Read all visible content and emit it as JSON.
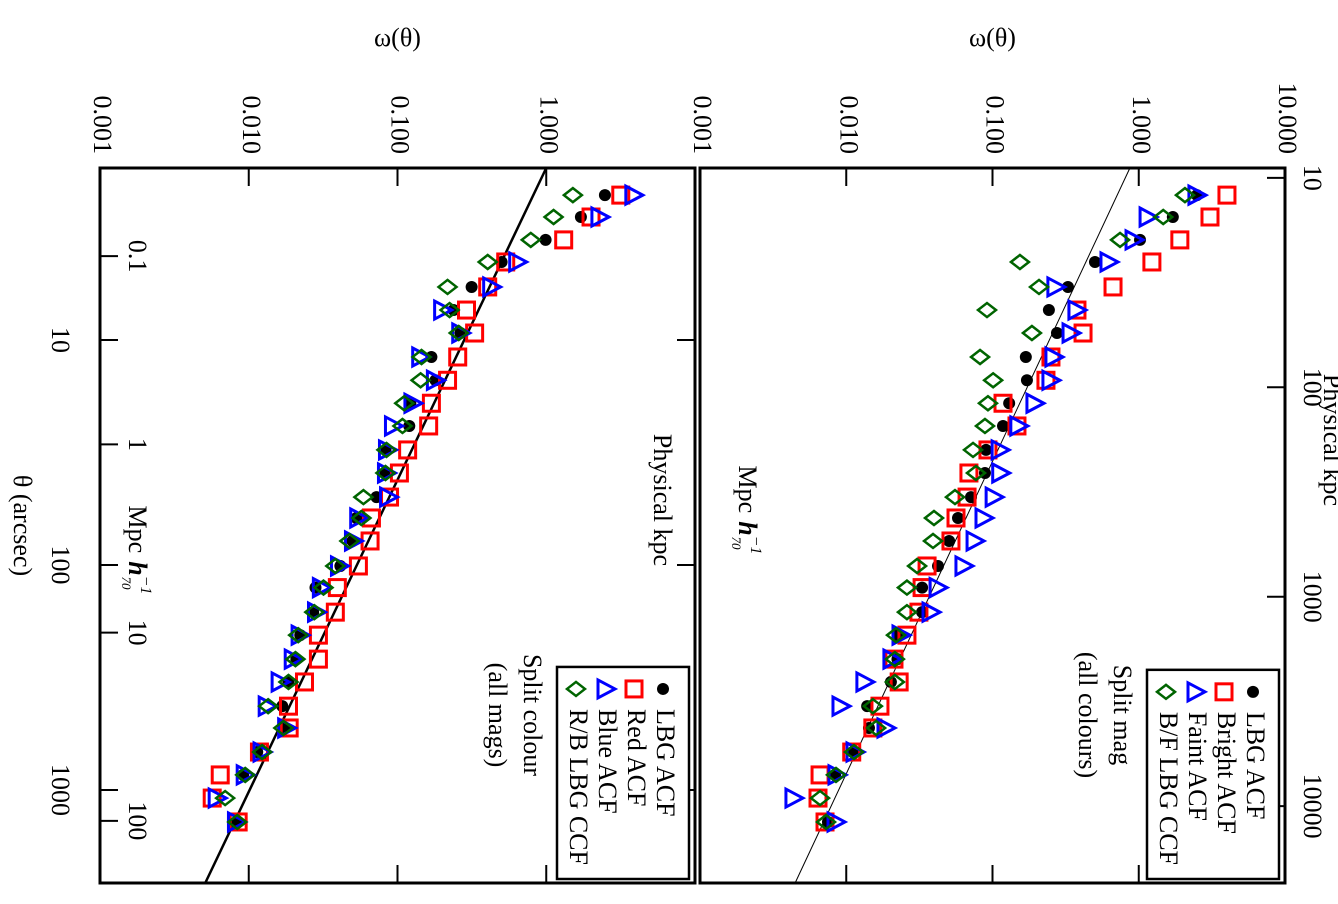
{
  "chart_data": [
    {
      "type": "scatter",
      "log_x": true,
      "log_y": true,
      "y_label": "ω(θ)",
      "xlim": [
        1.72,
        2590
      ],
      "ylim": [
        0.001,
        10
      ],
      "yticks": [
        0.001,
        {
          "value": 0.01,
          "label": "0.010"
        },
        {
          "value": 0.1,
          "label": "0.100"
        },
        {
          "value": 1,
          "label": "1.000"
        },
        {
          "value": 10,
          "label": "10.000"
        }
      ],
      "kpc_axis": {
        "label": "Physical kpc",
        "lim": [
          8.97,
          23280
        ],
        "ticks": [
          10,
          100,
          1000,
          10000
        ]
      },
      "mpc_axis": {
        "label": {
          "text": "Mpc",
          "h": "h",
          "sup": "−1",
          "sub": "70"
        }
      },
      "annotation": [
        "Split mag",
        "(all colours)"
      ],
      "x": [
        2.27,
        2.84,
        3.59,
        4.5,
        5.81,
        7.36,
        9.31,
        11.9,
        15.1,
        19.1,
        24.1,
        30.8,
        39.0,
        49.9,
        61.8,
        78.2,
        101,
        126,
        162,
        205,
        262,
        331,
        424,
        530,
        678,
        857,
        1086,
        1387
      ],
      "series": [
        {
          "name": "LBG ACF",
          "color": "#000000",
          "marker": "dot",
          "values": [
            2.5,
            1.71,
            1.02,
            0.502,
            0.328,
            0.243,
            0.276,
            0.169,
            0.172,
            0.13,
            0.118,
            0.0903,
            0.0888,
            0.0713,
            0.0581,
            0.0505,
            0.0424,
            0.033,
            0.033,
            0.0224,
            0.0224,
            0.0202,
            0.0139,
            0.0143,
            0.0111,
            0.00838,
            null,
            0.0075
          ]
        },
        {
          "name": "Bright ACF",
          "color": "#ff0000",
          "marker": "square",
          "values": [
            4.01,
            3.07,
            1.91,
            1.23,
            0.667,
            0.378,
            0.416,
            0.251,
            0.232,
            0.118,
            0.147,
            0.0931,
            0.069,
            0.067,
            0.0563,
            0.052,
            0.0357,
            0.033,
            0.0314,
            0.026,
            0.0212,
            0.023,
            0.017,
            0.0152,
            0.0109,
            0.00662,
            0.00641,
            0.00716
          ]
        },
        {
          "name": "Faint ACF",
          "color": "#0000ff",
          "marker": "triangle",
          "values": [
            2.46,
            1.14,
            0.914,
            0.616,
            0.267,
            0.372,
            0.339,
            0.259,
            0.247,
            0.192,
            0.149,
            0.111,
            0.112,
            0.101,
            0.0861,
            0.0748,
            0.0628,
            0.0418,
            0.0374,
            0.0233,
            0.0202,
            0.0132,
            0.00906,
            0.0184,
            0.0113,
            0.00851,
            0.00432,
            0.00838
          ]
        },
        {
          "name": "B/F LBG CCF",
          "color": "#006400",
          "marker": "diamond",
          "values": [
            2.07,
            1.47,
            0.745,
            0.154,
            0.208,
            0.0917,
            0.186,
            0.0822,
            0.101,
            0.0931,
            0.0888,
            0.0736,
            0.0771,
            0.0554,
            0.0398,
            0.0392,
            0.0305,
            0.026,
            0.026,
            0.0219,
            0.0215,
            0.0215,
            0.0152,
            0.016,
            0.0113,
            0.00851,
            0.00662,
            0.00727
          ]
        }
      ],
      "fit": {
        "x": [
          1.72,
          2590
        ],
        "values": [
          0.87,
          0.00447
        ],
        "width": 1
      }
    },
    {
      "type": "scatter",
      "log_x": true,
      "log_y": true,
      "x_label": "θ (arcsec)",
      "y_label": "ω(θ)",
      "xlim": [
        1.72,
        2590
      ],
      "ylim": [
        0.001,
        10
      ],
      "xticks": [
        10,
        100,
        1000
      ],
      "yticks": [
        0.001,
        {
          "value": 0.01,
          "label": "0.010"
        },
        {
          "value": 0.1,
          "label": "0.100"
        },
        {
          "value": 1,
          "label": "1.000"
        }
      ],
      "kpc_axis": {
        "label": "Physical kpc"
      },
      "mpc_axis": {
        "label": {
          "text": "Mpc",
          "h": "h",
          "sup": "−1",
          "sub": "70"
        },
        "lim": [
          0.034,
          214
        ],
        "ticks": [
          0.1,
          1,
          10,
          100
        ]
      },
      "annotation": [
        "Split colour",
        "(all mags)"
      ],
      "x": [
        2.27,
        2.84,
        3.59,
        4.5,
        5.81,
        7.36,
        9.31,
        11.9,
        15.1,
        19.1,
        24.1,
        30.8,
        39.0,
        49.9,
        61.8,
        78.2,
        101,
        126,
        162,
        205,
        262,
        331,
        424,
        530,
        678,
        857,
        1086,
        1387
      ],
      "series": [
        {
          "name": "LBG ACF",
          "color": "#000000",
          "marker": "dot",
          "values": [
            2.48,
            1.71,
            0.99,
            0.501,
            0.315,
            0.238,
            0.265,
            0.169,
            0.18,
            0.122,
            0.12,
            0.083,
            0.0818,
            0.0722,
            0.0529,
            0.0498,
            0.0413,
            0.0281,
            0.0271,
            0.0222,
            0.0209,
            0.0185,
            0.0168,
            0.0174,
            0.0114,
            0.00917,
            null,
            0.00826
          ]
        },
        {
          "name": "Red ACF",
          "color": "#ff0000",
          "marker": "square",
          "values": [
            3.17,
            2.0,
            1.31,
            0.534,
            0.404,
            0.291,
            0.33,
            0.254,
            0.217,
            0.169,
            0.162,
            0.117,
            0.103,
            0.0884,
            0.0668,
            0.0654,
            0.0546,
            0.0394,
            0.0382,
            0.0294,
            0.0294,
            0.0237,
            0.0185,
            0.0187,
            0.0118,
            0.00643,
            0.00568,
            0.00849
          ]
        },
        {
          "name": "Blue ACF",
          "color": "#0000ff",
          "marker": "triangle",
          "values": [
            3.82,
            2.26,
            null,
            0.633,
            0.423,
            0.198,
            0.262,
            0.141,
            0.177,
            0.125,
            0.0925,
            0.0843,
            0.083,
            0.0857,
            0.054,
            0.0498,
            0.0401,
            0.0303,
            0.0281,
            0.0218,
            0.0196,
            0.016,
            0.0131,
            0.0177,
            0.0121,
            0.00932,
            0.00604,
            0.00814
          ]
        },
        {
          "name": "R/B LBG CCF",
          "color": "#006400",
          "marker": "diamond",
          "values": [
            1.51,
            1.12,
            0.787,
            0.404,
            0.217,
            0.224,
            0.258,
            0.145,
            0.143,
            0.111,
            0.108,
            0.0843,
            0.083,
            0.059,
            0.0572,
            0.0475,
            0.0382,
            0.0318,
            0.0276,
            0.0215,
            0.0206,
            0.0185,
            0.0135,
            0.0171,
            0.0123,
            0.00947,
            0.00694,
            0.00837
          ]
        }
      ],
      "fit": {
        "x": [
          1.72,
          2590
        ],
        "values": [
          1.0,
          0.0051
        ],
        "width": 2.5
      }
    }
  ]
}
